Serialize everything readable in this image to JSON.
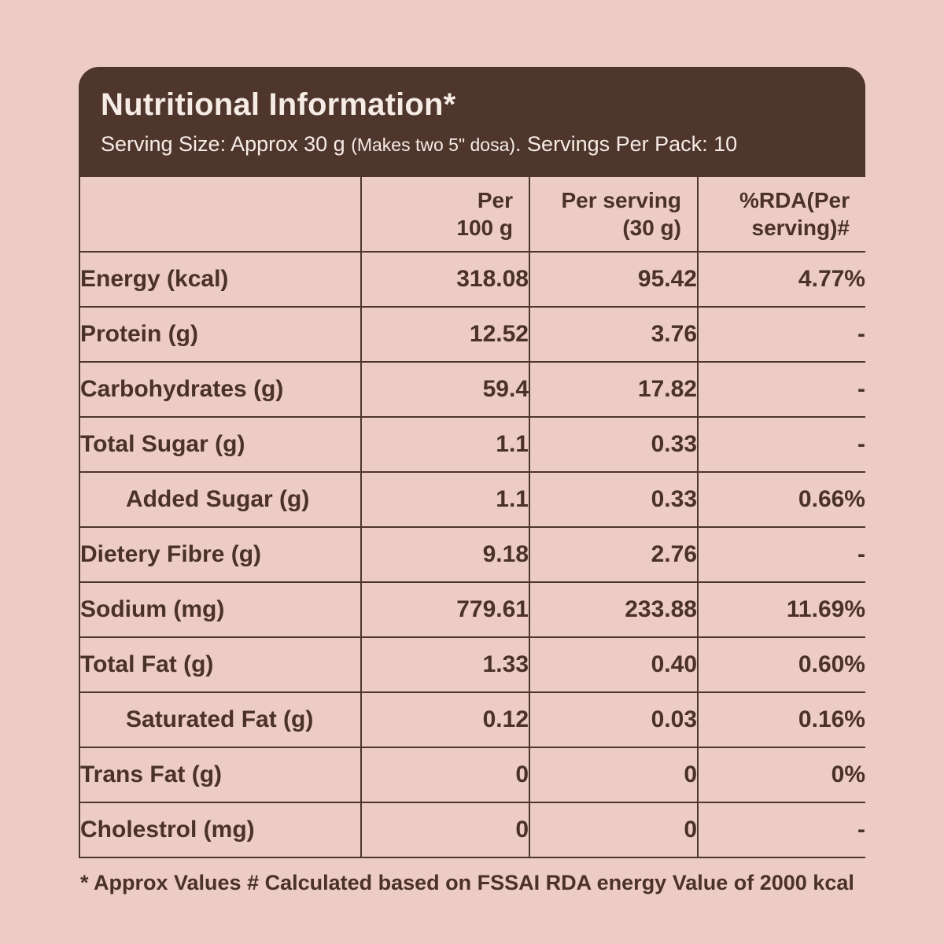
{
  "theme": {
    "background": "#ecccc4",
    "header_bg": "#4e362d",
    "header_text": "#f6ebe5",
    "border": "#4e362d",
    "text": "#4a312a"
  },
  "header": {
    "title": "Nutritional Information*",
    "serving_prefix": "Serving Size: Approx 30 g ",
    "serving_note": "(Makes two 5\" dosa)",
    "serving_suffix": ". Servings Per Pack: 10"
  },
  "table": {
    "columns": {
      "col0": "",
      "col1": "Per\n100 g",
      "col2": "Per serving\n(30 g)",
      "col3": "%RDA(Per\nserving)#"
    },
    "rows": [
      {
        "label": "Energy (kcal)",
        "per_100g": "318.08",
        "per_serving": "95.42",
        "rda": "4.77%"
      },
      {
        "label": "Protein (g)",
        "per_100g": "12.52",
        "per_serving": "3.76",
        "rda": "-"
      },
      {
        "label": "Carbohydrates (g)",
        "per_100g": "59.4",
        "per_serving": "17.82",
        "rda": "-"
      },
      {
        "label": "Total Sugar (g)",
        "per_100g": "1.1",
        "per_serving": "0.33",
        "rda": "-"
      },
      {
        "label": "Added Sugar (g)",
        "per_100g": "1.1",
        "per_serving": "0.33",
        "rda": "0.66%"
      },
      {
        "label": "Dietery Fibre (g)",
        "per_100g": "9.18",
        "per_serving": "2.76",
        "rda": "-"
      },
      {
        "label": "Sodium (mg)",
        "per_100g": "779.61",
        "per_serving": "233.88",
        "rda": "11.69%"
      },
      {
        "label": "Total Fat (g)",
        "per_100g": "1.33",
        "per_serving": "0.40",
        "rda": "0.60%"
      },
      {
        "label": "Saturated Fat (g)",
        "per_100g": "0.12",
        "per_serving": "0.03",
        "rda": "0.16%"
      },
      {
        "label": "Trans Fat (g)",
        "per_100g": "0",
        "per_serving": "0",
        "rda": "0%"
      },
      {
        "label": "Cholestrol (mg)",
        "per_100g": "0",
        "per_serving": "0",
        "rda": "-"
      }
    ]
  },
  "footnote": "* Approx Values # Calculated based on FSSAI RDA energy Value of 2000 kcal"
}
